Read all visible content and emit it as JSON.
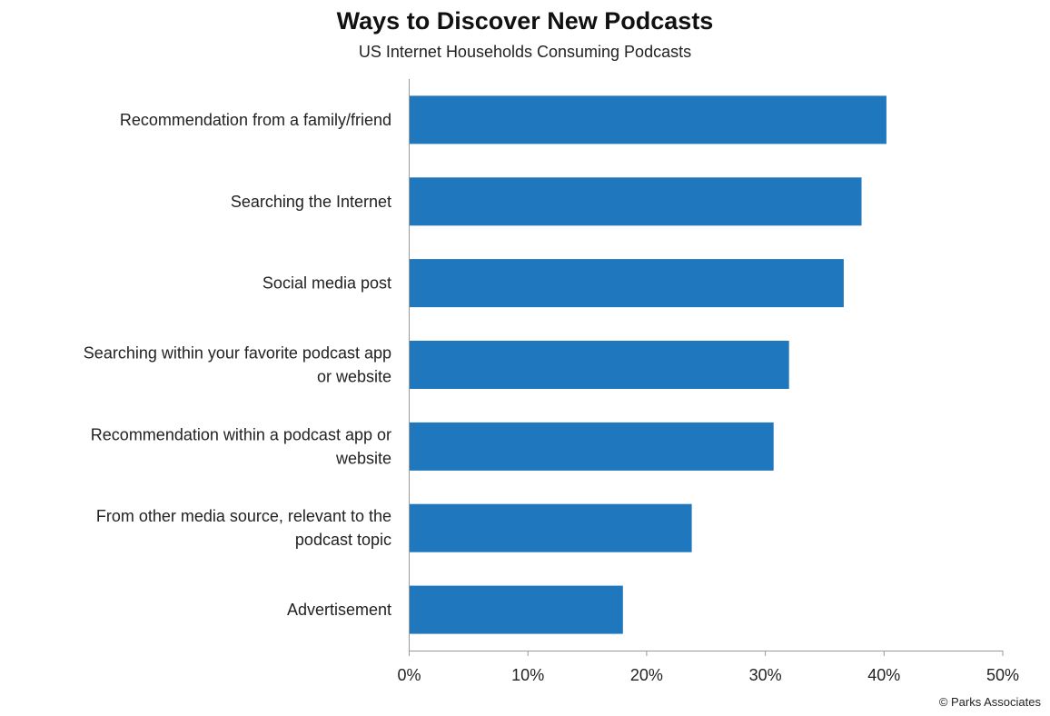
{
  "chart_data": {
    "type": "bar",
    "orientation": "horizontal",
    "title": "Ways to Discover New Podcasts",
    "subtitle": "US Internet Households Consuming Podcasts",
    "categories": [
      "Recommendation from a family/friend",
      "Searching the Internet",
      "Social media post",
      "Searching within your favorite podcast app or website",
      "Recommendation within a podcast app or website",
      "From other media source, relevant to the podcast topic",
      "Advertisement"
    ],
    "values": [
      40.2,
      38.1,
      36.6,
      32.0,
      30.7,
      23.8,
      18.0
    ],
    "xlim": [
      0,
      50
    ],
    "xticks": [
      "0%",
      "10%",
      "20%",
      "30%",
      "40%",
      "50%"
    ],
    "grid": false,
    "bar_color": "#1f77bd"
  },
  "source": "© Parks Associates"
}
